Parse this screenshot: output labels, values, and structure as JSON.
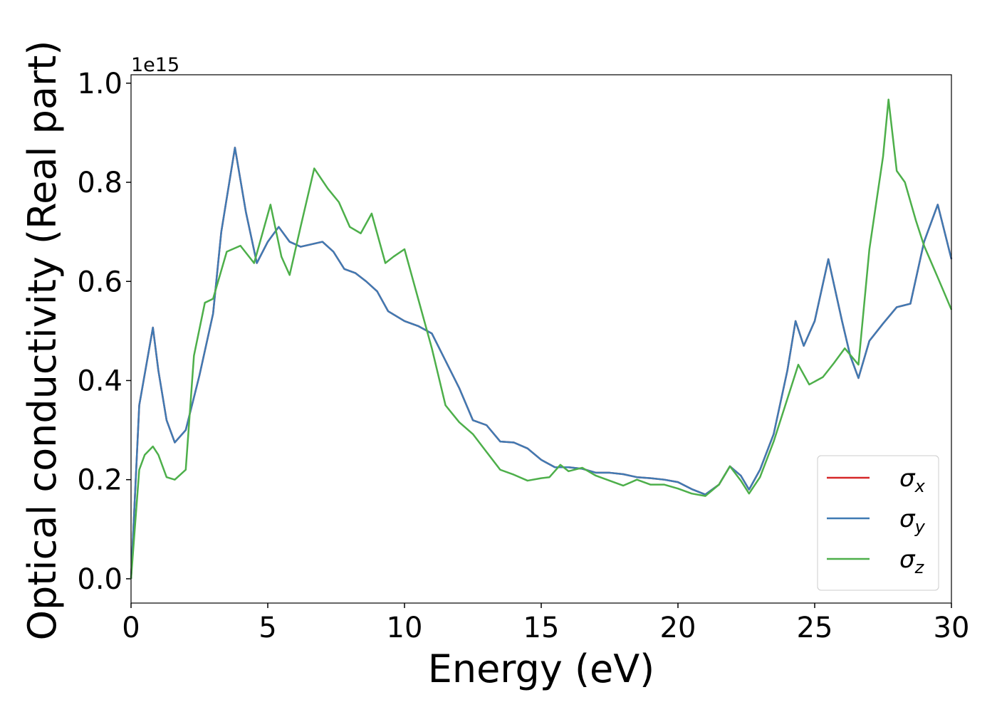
{
  "chart_data": {
    "type": "line",
    "xlabel": "Energy (eV)",
    "ylabel": "Optical conductivity (Real part)",
    "offset_label": "1e15",
    "xlim": [
      0,
      30
    ],
    "xticks": [
      0,
      5,
      10,
      15,
      20,
      25,
      30
    ],
    "ylim": [
      -0.049,
      1.017
    ],
    "yticks": [
      {
        "value": 0,
        "label": "0.0"
      },
      {
        "value": 0.2,
        "label": "0.2"
      },
      {
        "value": 0.4,
        "label": "0.4"
      },
      {
        "value": 0.6,
        "label": "0.6"
      },
      {
        "value": 0.8,
        "label": "0.8"
      },
      {
        "value": 1,
        "label": "1.0"
      }
    ],
    "legend": "lower right",
    "series": [
      {
        "name": "σx",
        "color": "#d62728",
        "x": [
          0,
          0.3,
          0.8,
          1.0,
          1.3,
          1.6,
          2.0,
          2.5,
          3.0,
          3.3,
          3.8,
          4.2,
          4.6,
          5.0,
          5.4,
          5.8,
          6.2,
          6.6,
          7.0,
          7.4,
          7.8,
          8.2,
          8.6,
          9.0,
          9.4,
          10.0,
          10.5,
          11.0,
          11.5,
          12.0,
          12.5,
          13.0,
          13.5,
          14.0,
          14.5,
          15.0,
          15.5,
          16.0,
          16.5,
          17.0,
          17.5,
          18.0,
          18.5,
          19.0,
          19.5,
          20.0,
          20.5,
          21.0,
          21.5,
          21.9,
          22.3,
          22.6,
          23.0,
          23.5,
          24.0,
          24.3,
          24.6,
          25.0,
          25.5,
          26.0,
          26.3,
          26.6,
          27.0,
          27.5,
          28.0,
          28.5,
          29.0,
          29.5,
          30.0
        ],
        "values": [
          0,
          0.35,
          0.507,
          0.42,
          0.32,
          0.275,
          0.3,
          0.41,
          0.535,
          0.7,
          0.87,
          0.74,
          0.637,
          0.68,
          0.71,
          0.68,
          0.67,
          0.675,
          0.68,
          0.66,
          0.625,
          0.617,
          0.6,
          0.58,
          0.54,
          0.52,
          0.51,
          0.495,
          0.44,
          0.385,
          0.32,
          0.31,
          0.277,
          0.275,
          0.263,
          0.24,
          0.225,
          0.225,
          0.222,
          0.214,
          0.214,
          0.211,
          0.205,
          0.203,
          0.2,
          0.195,
          0.181,
          0.17,
          0.19,
          0.227,
          0.208,
          0.18,
          0.22,
          0.292,
          0.42,
          0.52,
          0.47,
          0.52,
          0.645,
          0.52,
          0.45,
          0.405,
          0.48,
          0.515,
          0.548,
          0.555,
          0.68,
          0.755,
          0.645
        ]
      },
      {
        "name": "σy",
        "color": "#3f7ab3",
        "x": [
          0,
          0.3,
          0.8,
          1.0,
          1.3,
          1.6,
          2.0,
          2.5,
          3.0,
          3.3,
          3.8,
          4.2,
          4.6,
          5.0,
          5.4,
          5.8,
          6.2,
          6.6,
          7.0,
          7.4,
          7.8,
          8.2,
          8.6,
          9.0,
          9.4,
          10.0,
          10.5,
          11.0,
          11.5,
          12.0,
          12.5,
          13.0,
          13.5,
          14.0,
          14.5,
          15.0,
          15.5,
          16.0,
          16.5,
          17.0,
          17.5,
          18.0,
          18.5,
          19.0,
          19.5,
          20.0,
          20.5,
          21.0,
          21.5,
          21.9,
          22.3,
          22.6,
          23.0,
          23.5,
          24.0,
          24.3,
          24.6,
          25.0,
          25.5,
          26.0,
          26.3,
          26.6,
          27.0,
          27.5,
          28.0,
          28.5,
          29.0,
          29.5,
          30.0
        ],
        "values": [
          0,
          0.35,
          0.507,
          0.42,
          0.32,
          0.275,
          0.3,
          0.41,
          0.535,
          0.7,
          0.87,
          0.74,
          0.637,
          0.68,
          0.71,
          0.68,
          0.67,
          0.675,
          0.68,
          0.66,
          0.625,
          0.617,
          0.6,
          0.58,
          0.54,
          0.52,
          0.51,
          0.495,
          0.44,
          0.385,
          0.32,
          0.31,
          0.277,
          0.275,
          0.263,
          0.24,
          0.225,
          0.225,
          0.222,
          0.214,
          0.214,
          0.211,
          0.205,
          0.203,
          0.2,
          0.195,
          0.181,
          0.17,
          0.19,
          0.227,
          0.208,
          0.18,
          0.22,
          0.292,
          0.42,
          0.52,
          0.47,
          0.52,
          0.645,
          0.52,
          0.45,
          0.405,
          0.48,
          0.515,
          0.548,
          0.555,
          0.68,
          0.755,
          0.645
        ]
      },
      {
        "name": "σz",
        "color": "#4daf4a",
        "x": [
          0,
          0.3,
          0.5,
          0.8,
          1.0,
          1.3,
          1.6,
          2.0,
          2.3,
          2.7,
          3.0,
          3.5,
          4.0,
          4.5,
          5.1,
          5.5,
          5.8,
          6.2,
          6.7,
          7.2,
          7.6,
          8.0,
          8.4,
          8.8,
          9.3,
          9.6,
          10.0,
          10.5,
          11.0,
          11.5,
          12.0,
          12.5,
          13.0,
          13.5,
          14.0,
          14.5,
          15.0,
          15.3,
          15.7,
          16.0,
          16.5,
          17.0,
          17.5,
          18.0,
          18.5,
          19.0,
          19.5,
          20.0,
          20.5,
          21.0,
          21.5,
          21.9,
          22.3,
          22.6,
          23.0,
          23.5,
          24.0,
          24.4,
          24.8,
          25.3,
          25.7,
          26.1,
          26.6,
          27.0,
          27.5,
          27.7,
          28.0,
          28.3,
          28.7,
          29.0,
          29.5,
          30.0
        ],
        "values": [
          0,
          0.22,
          0.25,
          0.267,
          0.25,
          0.205,
          0.2,
          0.22,
          0.45,
          0.557,
          0.565,
          0.66,
          0.672,
          0.637,
          0.755,
          0.65,
          0.613,
          0.71,
          0.828,
          0.787,
          0.76,
          0.71,
          0.697,
          0.737,
          0.637,
          0.65,
          0.665,
          0.565,
          0.465,
          0.35,
          0.316,
          0.292,
          0.256,
          0.22,
          0.21,
          0.198,
          0.203,
          0.205,
          0.23,
          0.217,
          0.224,
          0.208,
          0.198,
          0.188,
          0.2,
          0.19,
          0.19,
          0.182,
          0.172,
          0.167,
          0.19,
          0.227,
          0.198,
          0.172,
          0.205,
          0.277,
          0.363,
          0.432,
          0.392,
          0.407,
          0.435,
          0.465,
          0.432,
          0.665,
          0.852,
          0.967,
          0.823,
          0.8,
          0.723,
          0.672,
          0.608,
          0.543
        ]
      }
    ]
  }
}
